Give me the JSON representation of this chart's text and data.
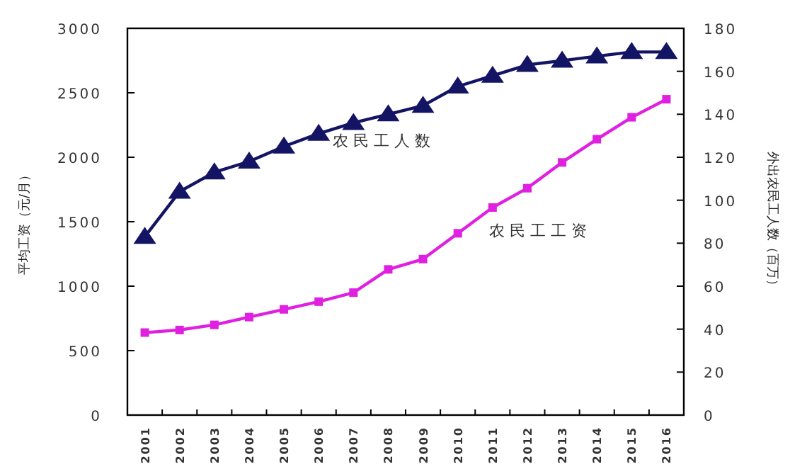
{
  "chart_data": {
    "type": "line",
    "categories": [
      "2001",
      "2002",
      "2003",
      "2004",
      "2005",
      "2006",
      "2007",
      "2008",
      "2009",
      "2010",
      "2011",
      "2012",
      "2013",
      "2014",
      "2015",
      "2016"
    ],
    "series": [
      {
        "name": "农 民 工 人 数",
        "color": "#141464",
        "marker": "triangle",
        "axis": "y2",
        "values": [
          83,
          104,
          113,
          118,
          125,
          131,
          136,
          140,
          144,
          153,
          158,
          163,
          165,
          167,
          169,
          169
        ]
      },
      {
        "name": "农 民 工 工 资",
        "color": "#e020e0",
        "marker": "square",
        "values": [
          640,
          660,
          700,
          760,
          820,
          880,
          950,
          1130,
          1210,
          1410,
          1610,
          1760,
          1960,
          2140,
          2310,
          2450
        ]
      }
    ],
    "ylabel": "平均工资（元/月）",
    "y2label": "外出农民工人数（百万）",
    "ylim": [
      0,
      3000
    ],
    "yticks": [
      0,
      500,
      1000,
      1500,
      2000,
      2500,
      3000
    ],
    "y2lim": [
      0,
      180
    ],
    "y2ticks": [
      0,
      20,
      40,
      60,
      80,
      100,
      120,
      140,
      160,
      180
    ]
  }
}
